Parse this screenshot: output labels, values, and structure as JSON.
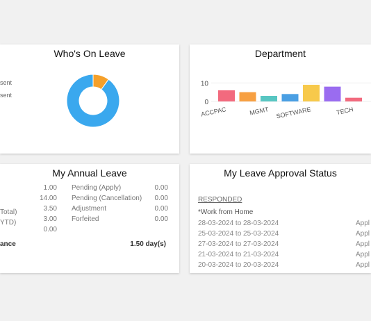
{
  "whos_on_leave": {
    "title": "Who's On Leave",
    "legend": [
      "sent",
      "sent"
    ],
    "chart_data": {
      "type": "pie",
      "categories": [
        "",
        ""
      ],
      "values": [
        1,
        9
      ],
      "colors": [
        "#f5a02a",
        "#3aa8ee"
      ]
    }
  },
  "department": {
    "title": "Department",
    "chart_data": {
      "type": "bar",
      "categories": [
        "ACCPAC",
        "",
        "MGMT",
        "",
        "SOFTWARE",
        "",
        "TECH",
        ""
      ],
      "values": [
        6,
        5,
        3,
        4,
        9,
        8,
        2,
        0
      ],
      "colors": [
        "#f26a7e",
        "#f7a042",
        "#58c6c2",
        "#4a9fe3",
        "#f7c94b",
        "#9a6cf0",
        "#f26a7e",
        "#f7a042"
      ],
      "yticks": [
        "10",
        "0"
      ],
      "ylim": [
        0,
        12
      ]
    }
  },
  "annual_leave": {
    "title": "My Annual Leave",
    "left": [
      {
        "label": "",
        "value": "1.00"
      },
      {
        "label": "Total)",
        "value": "14.00"
      },
      {
        "label": "YTD)",
        "value": "3.50"
      },
      {
        "label": "",
        "value": "3.00"
      },
      {
        "label": "",
        "value": "0.00"
      }
    ],
    "right": [
      {
        "label": "Pending (Apply)",
        "value": "0.00"
      },
      {
        "label": "Pending (Cancellation)",
        "value": "0.00"
      },
      {
        "label": "Adjustment",
        "value": "0.00"
      },
      {
        "label": "Forfeited",
        "value": "0.00"
      }
    ],
    "balance_label": "ance",
    "balance_value": "1.50 day(s)"
  },
  "approval_status": {
    "title": "My Leave Approval Status",
    "section": "RESPONDED",
    "leave_type": "*Work from Home",
    "rows": [
      {
        "dates": "28-03-2024 to 28-03-2024",
        "status": "Appl"
      },
      {
        "dates": "25-03-2024 to 25-03-2024",
        "status": "Appl"
      },
      {
        "dates": "27-03-2024 to 27-03-2024",
        "status": "Appl"
      },
      {
        "dates": "21-03-2024 to 21-03-2024",
        "status": "Appl"
      },
      {
        "dates": "20-03-2024 to 20-03-2024",
        "status": "Appl"
      }
    ]
  }
}
